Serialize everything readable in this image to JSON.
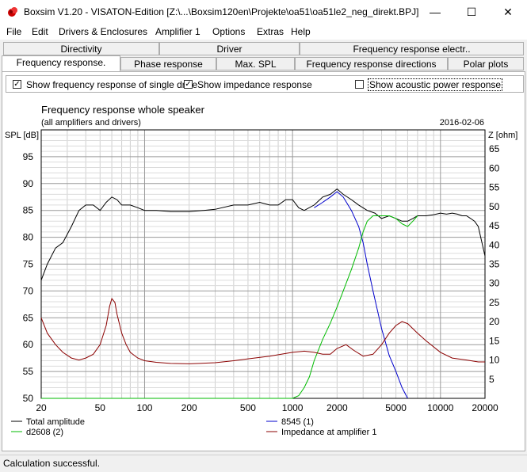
{
  "window": {
    "title": "Boxsim V1.20 - VISATON-Edition [Z:\\...\\Boxsim120en\\Projekte\\oa51\\oa51le2_neg_direkt.BPJ]",
    "minimize": "—",
    "maximize": "☐",
    "close": "✕"
  },
  "menu": [
    "File",
    "Edit",
    "Drivers & Enclosures",
    "Amplifier 1",
    "Options",
    "Extras",
    "Help"
  ],
  "tabs_row1": [
    "Directivity",
    "Driver",
    "Frequency response electr.."
  ],
  "tabs_row2": [
    "Frequency response.",
    "Phase response",
    "Max. SPL",
    "Frequency response directions",
    "Polar plots"
  ],
  "options": {
    "single_drive_label": "Show frequency response of single drive",
    "single_drive_checked": true,
    "impedance_label": "Show impedance response",
    "impedance_checked": true,
    "acoustic_power_label": "Show acoustic power response",
    "acoustic_power_checked": false
  },
  "status": "Calculation successful.",
  "chart_data": {
    "type": "line",
    "title": "Frequency response whole speaker",
    "subtitle": "(all amplifiers and drivers)",
    "date": "2016-02-06",
    "ylabel": "SPL [dB]",
    "y2label": "Z [ohm]",
    "x_scale": "log",
    "xlim": [
      20,
      20000
    ],
    "ylim": [
      50,
      100
    ],
    "y2lim": [
      0,
      70
    ],
    "x_ticks": [
      20,
      50,
      100,
      200,
      500,
      1000,
      2000,
      5000,
      10000,
      20000
    ],
    "y_ticks": [
      50,
      55,
      60,
      65,
      70,
      75,
      80,
      85,
      90,
      95
    ],
    "y2_ticks": [
      5,
      10,
      15,
      20,
      25,
      30,
      35,
      40,
      45,
      50,
      55,
      60,
      65
    ],
    "grid": true,
    "legend_placement": "bottom",
    "series": [
      {
        "name": "Total amplitude",
        "axis": "left",
        "color": "#000000",
        "x": [
          20,
          22,
          25,
          28,
          32,
          36,
          40,
          45,
          50,
          55,
          60,
          65,
          70,
          80,
          90,
          100,
          120,
          150,
          200,
          250,
          300,
          400,
          500,
          600,
          700,
          800,
          900,
          1000,
          1100,
          1200,
          1400,
          1600,
          1800,
          2000,
          2200,
          2500,
          2800,
          3200,
          3600,
          4000,
          4500,
          5000,
          5500,
          6000,
          6500,
          7000,
          8000,
          9000,
          10000,
          11000,
          12000,
          13000,
          14000,
          15000,
          16000,
          17000,
          18000,
          20000
        ],
        "y": [
          72,
          75,
          78,
          79,
          82,
          85,
          86,
          86,
          85,
          86.5,
          87.5,
          87,
          86,
          86,
          85.5,
          85,
          85,
          84.8,
          84.8,
          85,
          85.2,
          86,
          86,
          86.5,
          86,
          86,
          87,
          87,
          85.5,
          85,
          86,
          87.5,
          88,
          89,
          88,
          87,
          86,
          85,
          84.5,
          83.5,
          84,
          83.5,
          83,
          83,
          83.5,
          84,
          84,
          84.2,
          84.5,
          84.3,
          84.5,
          84.3,
          84,
          84,
          83.5,
          83,
          82,
          76.5
        ]
      },
      {
        "name": "8545 (1)",
        "axis": "left",
        "color": "#0000cc",
        "x": [
          1400,
          1600,
          1800,
          2000,
          2200,
          2500,
          2800,
          3000,
          3200,
          3500,
          4000,
          4500,
          5000,
          5500,
          6000
        ],
        "y": [
          85.5,
          86.5,
          87.5,
          88.5,
          87.5,
          85,
          82,
          79,
          75,
          70,
          63,
          58,
          55,
          52,
          50
        ]
      },
      {
        "name": "d2608 (2)",
        "axis": "left",
        "color": "#00bb00",
        "x": [
          20,
          100,
          500,
          1000,
          1100,
          1200,
          1300,
          1400,
          1600,
          1800,
          2000,
          2200,
          2500,
          2800,
          3000,
          3200,
          3500,
          4000,
          4500,
          5000,
          5500,
          6000,
          6500,
          7000
        ],
        "y": [
          50,
          50,
          50,
          50,
          50.5,
          52,
          54,
          57,
          61,
          64,
          67,
          70,
          74,
          78,
          81,
          83,
          84,
          84,
          84,
          83.5,
          82.5,
          82,
          83,
          84
        ]
      },
      {
        "name": "Impedance at amplifier 1",
        "axis": "right",
        "color": "#8b0000",
        "x": [
          20,
          22,
          25,
          28,
          32,
          36,
          40,
          45,
          50,
          55,
          58,
          60,
          63,
          65,
          70,
          75,
          80,
          90,
          100,
          120,
          150,
          200,
          300,
          400,
          500,
          700,
          1000,
          1200,
          1400,
          1600,
          1800,
          2000,
          2300,
          2600,
          3000,
          3500,
          4000,
          4500,
          5000,
          5500,
          6000,
          7000,
          8000,
          10000,
          12000,
          15000,
          18000,
          20000
        ],
        "y": [
          21,
          17,
          14,
          12,
          10.5,
          10,
          10.5,
          11.5,
          14,
          19,
          24,
          26,
          25,
          22,
          17,
          14,
          12,
          10.5,
          9.8,
          9.4,
          9.1,
          9.0,
          9.3,
          9.8,
          10.3,
          11.0,
          12.0,
          12.3,
          12.0,
          11.5,
          11.5,
          13,
          14,
          12.5,
          11,
          11.5,
          14,
          17,
          19,
          20,
          19.5,
          17,
          15,
          12,
          10.5,
          10,
          9.5,
          9.5
        ]
      }
    ]
  }
}
